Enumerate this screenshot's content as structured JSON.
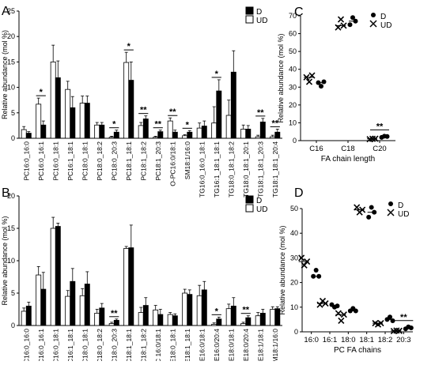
{
  "chart_data": [
    {
      "panel": "A",
      "type": "bar",
      "ylabel": "Relative abundance (mol %)",
      "ylim": [
        0,
        25
      ],
      "yticks": [
        0,
        5,
        10,
        15,
        20,
        25
      ],
      "legend": [
        "D",
        "UD"
      ],
      "legend_placement": "top-right",
      "categories": [
        "PC16:0_16:0",
        "PC16:0_16:1",
        "PC16:0_18:1",
        "PC16:1_18:1",
        "PC18:0_18:1",
        "PC18:0_18:2",
        "PC18:0_20:3",
        "PC18:1_18:1",
        "PC18:1_18:2",
        "PC18:1_20:3",
        "O-PC16:0/18:1",
        "SM18:1/16:0",
        "TG16:0_16:0_18:1",
        "TG16:1_18:1_18:1",
        "TG18:0_18:1_18:2",
        "TG18:0_18:1_20:1",
        "TG18:1_18:1_20:3",
        "TG18:1_18:1_20:4"
      ],
      "series": [
        {
          "name": "UD",
          "values": [
            1.7,
            6.7,
            15.0,
            9.6,
            6.9,
            2.6,
            0.2,
            14.9,
            2.5,
            0.2,
            3.4,
            0.5,
            2.0,
            3.0,
            4.5,
            1.8,
            0.3,
            0.3
          ],
          "errors": [
            0.6,
            1.2,
            3.3,
            1.6,
            1.4,
            0.5,
            0.2,
            2.0,
            0.6,
            0.2,
            0.6,
            0.2,
            1.0,
            3.2,
            3.0,
            0.8,
            0.3,
            0.3
          ]
        },
        {
          "name": "D",
          "values": [
            1.0,
            2.6,
            11.9,
            6.0,
            6.9,
            2.6,
            1.2,
            11.4,
            3.8,
            1.3,
            1.2,
            1.2,
            2.4,
            9.3,
            13.0,
            1.8,
            3.2,
            1.2
          ],
          "errors": [
            0.3,
            0.8,
            3.3,
            2.2,
            1.4,
            0.5,
            0.4,
            3.6,
            0.6,
            0.3,
            0.4,
            0.3,
            1.0,
            2.2,
            4.2,
            0.7,
            0.7,
            0.6
          ]
        }
      ],
      "significance": [
        {
          "category": "PC16:0_16:1",
          "label": "*"
        },
        {
          "category": "PC18:0_20:3",
          "label": "*"
        },
        {
          "category": "PC18:1_18:1",
          "label": "*"
        },
        {
          "category": "PC18:1_18:2",
          "label": "**"
        },
        {
          "category": "PC18:1_20:3",
          "label": "**"
        },
        {
          "category": "O-PC16:0/18:1",
          "label": "**"
        },
        {
          "category": "SM18:1/16:0",
          "label": "*"
        },
        {
          "category": "TG16:1_18:1_18:1",
          "label": "*"
        },
        {
          "category": "TG18:1_18:1_20:3",
          "label": "**"
        },
        {
          "category": "TG18:1_18:1_20:4",
          "label": "**"
        }
      ]
    },
    {
      "panel": "B",
      "type": "bar",
      "ylabel": "Relative abundance (mol %)",
      "ylim": [
        0,
        20
      ],
      "yticks": [
        0,
        5,
        10,
        15,
        20
      ],
      "legend": [
        "D",
        "UD"
      ],
      "legend_placement": "top-right",
      "categories": [
        "PC16:0_16:0",
        "PC16:0_16:1",
        "PC16:0_18:1",
        "PC16:1_18:1",
        "PC18:0_18:1",
        "PC18:0_18:2",
        "PC18:0_20:3",
        "PC18:1_18:1",
        "PC18:1_18:2",
        "O-PC 16:0/18:1",
        "PE18:0_18:1",
        "PE18:1_18:1",
        "P-PE16:0/18:1",
        "P-PE16:0/20:4",
        "P-PE18:0/18:1",
        "P-PE18:0/20:4",
        "P-PE18:1/18:1",
        "SM18:1/16:0"
      ],
      "series": [
        {
          "name": "UD",
          "values": [
            2.2,
            7.8,
            15.0,
            4.5,
            4.6,
            1.9,
            0.3,
            11.9,
            2.0,
            2.4,
            1.7,
            5.0,
            4.6,
            0.2,
            2.6,
            0.3,
            1.5,
            2.5
          ],
          "errors": [
            0.5,
            1.3,
            1.7,
            0.9,
            1.1,
            0.6,
            0.2,
            0.3,
            0.8,
            0.7,
            0.3,
            0.6,
            1.6,
            0.2,
            0.7,
            0.2,
            0.5,
            0.4
          ]
        },
        {
          "name": "D",
          "values": [
            3.0,
            5.6,
            15.3,
            6.8,
            6.4,
            2.7,
            0.8,
            12.0,
            3.1,
            1.7,
            1.5,
            4.8,
            5.5,
            1.0,
            3.0,
            1.2,
            1.9,
            2.6
          ],
          "errors": [
            0.6,
            2.6,
            0.5,
            2.0,
            1.9,
            0.7,
            0.2,
            3.5,
            1.2,
            0.8,
            0.3,
            0.7,
            1.3,
            0.3,
            1.3,
            0.3,
            0.6,
            0.3
          ]
        }
      ],
      "significance": [
        {
          "category": "PC18:0_20:3",
          "label": "**"
        },
        {
          "category": "P-PE16:0/20:4",
          "label": "*"
        },
        {
          "category": "P-PE18:0/20:4",
          "label": "**"
        }
      ]
    },
    {
      "panel": "C",
      "type": "scatter",
      "xlabel": "FA chain length",
      "ylabel": "Relative abundance (mol %)",
      "ylim": [
        0,
        70
      ],
      "yticks": [
        0,
        10,
        20,
        30,
        40,
        50,
        60,
        70
      ],
      "categories": [
        "C16",
        "C18",
        "C20"
      ],
      "legend": [
        "D",
        "UD"
      ],
      "legend_placement": "top-right",
      "series": [
        {
          "name": "UD",
          "marker": "x",
          "values": [
            [
              35.5,
              33.0,
              36.5
            ],
            [
              63.5,
              68.0,
              64.5
            ],
            [
              0.8,
              1.0,
              1.1
            ]
          ]
        },
        {
          "name": "D",
          "marker": "dot",
          "values": [
            [
              32.5,
              30.5,
              33.0
            ],
            [
              65.0,
              69.0,
              67.0
            ],
            [
              1.8,
              2.5,
              2.3
            ]
          ]
        }
      ],
      "significance": [
        {
          "category": "C20",
          "label": "**"
        }
      ]
    },
    {
      "panel": "D",
      "type": "scatter",
      "xlabel": "PC FA chains",
      "ylabel": "Relative abundance (mol %)",
      "ylim": [
        0,
        50
      ],
      "yticks": [
        0,
        10,
        20,
        30,
        40,
        50
      ],
      "categories": [
        "16:0",
        "16:1",
        "18:0",
        "18:1",
        "18:2",
        "20:3"
      ],
      "legend": [
        "D",
        "UD"
      ],
      "legend_placement": "top-right",
      "series": [
        {
          "name": "UD",
          "marker": "x",
          "values": [
            [
              30.0,
              27.0,
              28.5
            ],
            [
              11.0,
              12.5,
              11.5
            ],
            [
              7.5,
              4.5,
              7.0
            ],
            [
              50.5,
              48.5,
              49.5
            ],
            [
              3.5,
              3.0,
              3.5
            ],
            [
              0.3,
              0.5,
              0.4
            ]
          ]
        },
        {
          "name": "D",
          "marker": "dot",
          "values": [
            [
              22.5,
              25.0,
              22.5
            ],
            [
              11.0,
              10.0,
              10.5
            ],
            [
              8.5,
              9.5,
              8.5
            ],
            [
              46.5,
              50.5,
              48.5
            ],
            [
              5.0,
              6.0,
              4.5
            ],
            [
              1.2,
              2.0,
              1.6
            ]
          ]
        }
      ],
      "significance": [
        {
          "category": "20:3",
          "label": "**"
        }
      ]
    }
  ]
}
